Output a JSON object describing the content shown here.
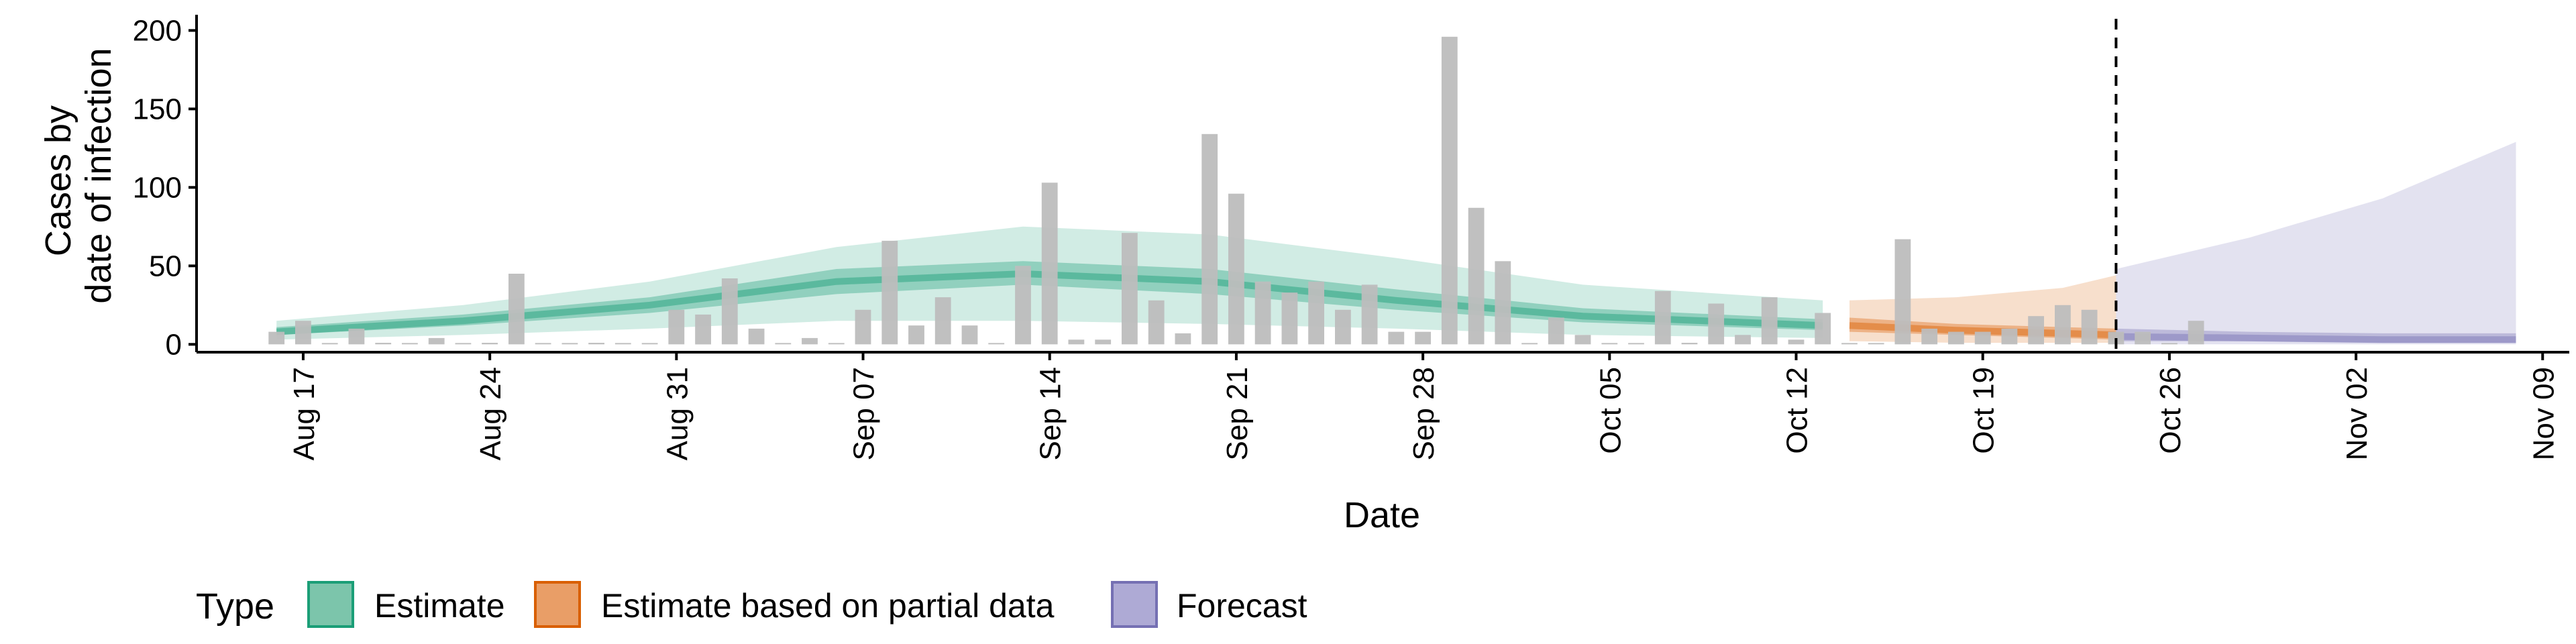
{
  "chart_data": {
    "type": "bar",
    "ylabel_lines": [
      "Cases by",
      "date of infection"
    ],
    "xlabel": "Date",
    "ylim": [
      -5,
      210
    ],
    "yticks": [
      0,
      50,
      100,
      150,
      200
    ],
    "x_range": [
      "2020-08-13",
      "2020-11-10"
    ],
    "xticks": [
      {
        "date": "2020-08-17",
        "label": "Aug 17"
      },
      {
        "date": "2020-08-24",
        "label": "Aug 24"
      },
      {
        "date": "2020-08-31",
        "label": "Aug 31"
      },
      {
        "date": "2020-09-07",
        "label": "Sep 07"
      },
      {
        "date": "2020-09-14",
        "label": "Sep 14"
      },
      {
        "date": "2020-09-21",
        "label": "Sep 21"
      },
      {
        "date": "2020-09-28",
        "label": "Sep 28"
      },
      {
        "date": "2020-10-05",
        "label": "Oct 05"
      },
      {
        "date": "2020-10-12",
        "label": "Oct 12"
      },
      {
        "date": "2020-10-19",
        "label": "Oct 19"
      },
      {
        "date": "2020-10-26",
        "label": "Oct 26"
      },
      {
        "date": "2020-11-02",
        "label": "Nov 02"
      },
      {
        "date": "2020-11-09",
        "label": "Nov 09"
      }
    ],
    "bar_color": "#bdbdbd",
    "bars": {
      "start_date": "2020-08-16",
      "values": [
        8,
        15,
        0,
        10,
        1,
        0,
        4,
        0,
        1,
        45,
        0,
        0,
        1,
        0,
        0,
        22,
        19,
        42,
        10,
        0,
        4,
        0,
        22,
        66,
        12,
        30,
        12,
        0,
        50,
        103,
        3,
        3,
        71,
        28,
        7,
        134,
        96,
        40,
        33,
        40,
        22,
        38,
        8,
        8,
        196,
        87,
        53,
        0,
        17,
        6,
        0,
        0,
        34,
        1,
        26,
        6,
        30,
        3,
        20,
        0,
        0,
        67,
        10,
        8,
        8,
        10,
        18,
        25,
        22,
        8,
        8,
        0,
        15
      ]
    },
    "forecast_marker_date": "2020-10-24",
    "bands": [
      {
        "type": "Estimate",
        "color": "#1b9e77",
        "dates": [
          "2020-08-16",
          "2020-08-23",
          "2020-08-30",
          "2020-09-06",
          "2020-09-13",
          "2020-09-20",
          "2020-09-27",
          "2020-10-04",
          "2020-10-13"
        ],
        "median": [
          8,
          15,
          25,
          40,
          45,
          40,
          28,
          18,
          12
        ],
        "inner_low": [
          6,
          12,
          20,
          32,
          38,
          32,
          22,
          14,
          9
        ],
        "inner_high": [
          11,
          19,
          30,
          48,
          53,
          48,
          35,
          23,
          16
        ],
        "lower": [
          3,
          6,
          10,
          15,
          15,
          13,
          10,
          6,
          4
        ],
        "upper": [
          15,
          25,
          40,
          62,
          75,
          70,
          55,
          38,
          28
        ]
      },
      {
        "type": "Estimate based on partial data",
        "color": "#d95f02",
        "dates": [
          "2020-10-14",
          "2020-10-18",
          "2020-10-22",
          "2020-10-24"
        ],
        "median": [
          12,
          9,
          7,
          6
        ],
        "inner_low": [
          8,
          6,
          4,
          3
        ],
        "inner_high": [
          17,
          13,
          11,
          10
        ],
        "lower": [
          2,
          1,
          1,
          1
        ],
        "upper": [
          28,
          30,
          36,
          44
        ]
      },
      {
        "type": "Forecast",
        "color": "#7570b3",
        "dates": [
          "2020-10-24",
          "2020-10-29",
          "2020-11-03",
          "2020-11-08"
        ],
        "median": [
          5,
          4,
          3,
          3
        ],
        "inner_low": [
          2,
          2,
          1,
          1
        ],
        "inner_high": [
          10,
          8,
          7,
          7
        ],
        "lower": [
          0,
          0,
          0,
          0
        ],
        "upper": [
          48,
          68,
          93,
          129
        ]
      }
    ],
    "legend": {
      "position": "bottom",
      "title": "Type",
      "items": [
        {
          "label": "Estimate",
          "fill": "#7cc5ab",
          "border": "#1b9e77"
        },
        {
          "label": "Estimate based on partial data",
          "fill": "#e99e67",
          "border": "#d95f02"
        },
        {
          "label": "Forecast",
          "fill": "#aeaad5",
          "border": "#7570b3"
        }
      ]
    }
  }
}
